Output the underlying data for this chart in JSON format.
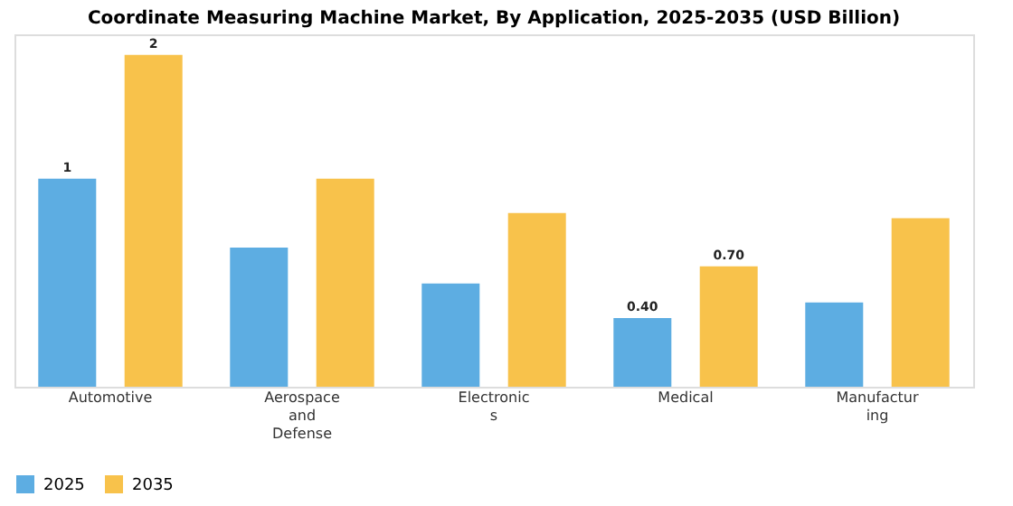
{
  "chart_data": {
    "type": "bar",
    "title": "Coordinate Measuring Machine Market, By Application, 2025-2035 (USD Billion)",
    "categories": [
      "Automotive",
      "Aerospace and Defense",
      "Electronics",
      "Medical",
      "Manufacturing"
    ],
    "series": [
      {
        "name": "2025",
        "color": "#5dade2",
        "values": [
          1.21,
          0.81,
          0.6,
          0.4,
          0.49
        ],
        "value_labels": [
          "1",
          null,
          null,
          "0.40",
          null
        ]
      },
      {
        "name": "2035",
        "color": "#f8c24b",
        "values": [
          1.93,
          1.21,
          1.01,
          0.7,
          0.98
        ],
        "value_labels": [
          "2",
          null,
          null,
          "0.70",
          null
        ]
      }
    ],
    "ylim": [
      0,
      2.05
    ],
    "legend": "bottom",
    "grid": false
  }
}
